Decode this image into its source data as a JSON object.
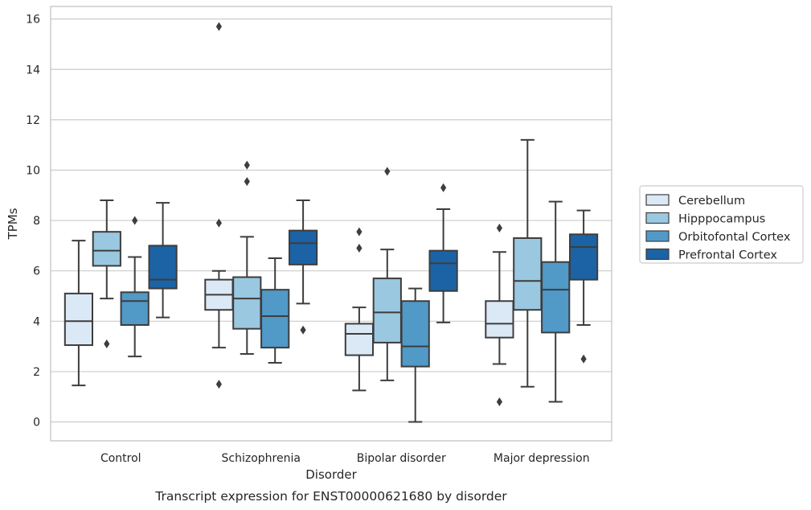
{
  "chart_data": {
    "type": "box",
    "title": "",
    "caption": "Transcript expression for ENST00000621680 by disorder",
    "xlabel": "Disorder",
    "ylabel": "TPMs",
    "ylim": [
      -0.75,
      16.5
    ],
    "yticks": [
      0,
      2,
      4,
      6,
      8,
      10,
      12,
      14,
      16
    ],
    "grid": "horizontal",
    "legend_position": "right",
    "categories": [
      "Control",
      "Schizophrenia",
      "Bipolar disorder",
      "Major depression"
    ],
    "series": [
      {
        "name": "Cerebellum",
        "color": "#dbe9f6",
        "boxes": [
          {
            "whisker_low": 1.45,
            "q1": 3.05,
            "median": 4.0,
            "q3": 5.1,
            "whisker_high": 7.2,
            "outliers": []
          },
          {
            "whisker_low": 2.95,
            "q1": 4.45,
            "median": 5.05,
            "q3": 5.65,
            "whisker_high": 6.0,
            "outliers": [
              1.5,
              7.9,
              15.7
            ]
          },
          {
            "whisker_low": 1.25,
            "q1": 2.65,
            "median": 3.5,
            "q3": 3.9,
            "whisker_high": 4.55,
            "outliers": [
              6.9,
              7.55
            ]
          },
          {
            "whisker_low": 2.3,
            "q1": 3.35,
            "median": 3.9,
            "q3": 4.8,
            "whisker_high": 6.75,
            "outliers": [
              0.8,
              7.7
            ]
          }
        ]
      },
      {
        "name": "Hipppocampus",
        "color": "#9ac8e0",
        "boxes": [
          {
            "whisker_low": 4.9,
            "q1": 6.2,
            "median": 6.8,
            "q3": 7.55,
            "whisker_high": 8.8,
            "outliers": [
              3.1
            ]
          },
          {
            "whisker_low": 2.7,
            "q1": 3.7,
            "median": 4.9,
            "q3": 5.75,
            "whisker_high": 7.35,
            "outliers": [
              9.55,
              10.2
            ]
          },
          {
            "whisker_low": 1.65,
            "q1": 3.15,
            "median": 4.35,
            "q3": 5.7,
            "whisker_high": 6.85,
            "outliers": [
              9.95
            ]
          },
          {
            "whisker_low": 1.4,
            "q1": 4.45,
            "median": 5.6,
            "q3": 7.3,
            "whisker_high": 11.2,
            "outliers": []
          }
        ]
      },
      {
        "name": "Orbitofontal Cortex",
        "color": "#5199c7",
        "boxes": [
          {
            "whisker_low": 2.6,
            "q1": 3.85,
            "median": 4.8,
            "q3": 5.15,
            "whisker_high": 6.55,
            "outliers": [
              8.0
            ]
          },
          {
            "whisker_low": 2.35,
            "q1": 2.95,
            "median": 4.2,
            "q3": 5.25,
            "whisker_high": 6.5,
            "outliers": []
          },
          {
            "whisker_low": 0.0,
            "q1": 2.2,
            "median": 3.0,
            "q3": 4.8,
            "whisker_high": 5.3,
            "outliers": []
          },
          {
            "whisker_low": 0.8,
            "q1": 3.55,
            "median": 5.25,
            "q3": 6.35,
            "whisker_high": 8.75,
            "outliers": []
          }
        ]
      },
      {
        "name": "Prefrontal Cortex",
        "color": "#1b63a5",
        "boxes": [
          {
            "whisker_low": 4.15,
            "q1": 5.3,
            "median": 5.65,
            "q3": 7.0,
            "whisker_high": 8.7,
            "outliers": []
          },
          {
            "whisker_low": 4.7,
            "q1": 6.25,
            "median": 7.1,
            "q3": 7.6,
            "whisker_high": 8.8,
            "outliers": [
              3.65
            ]
          },
          {
            "whisker_low": 3.95,
            "q1": 5.2,
            "median": 6.3,
            "q3": 6.8,
            "whisker_high": 8.45,
            "outliers": [
              9.3
            ]
          },
          {
            "whisker_low": 3.85,
            "q1": 5.65,
            "median": 6.95,
            "q3": 7.45,
            "whisker_high": 8.4,
            "outliers": [
              2.5
            ]
          }
        ]
      }
    ]
  }
}
